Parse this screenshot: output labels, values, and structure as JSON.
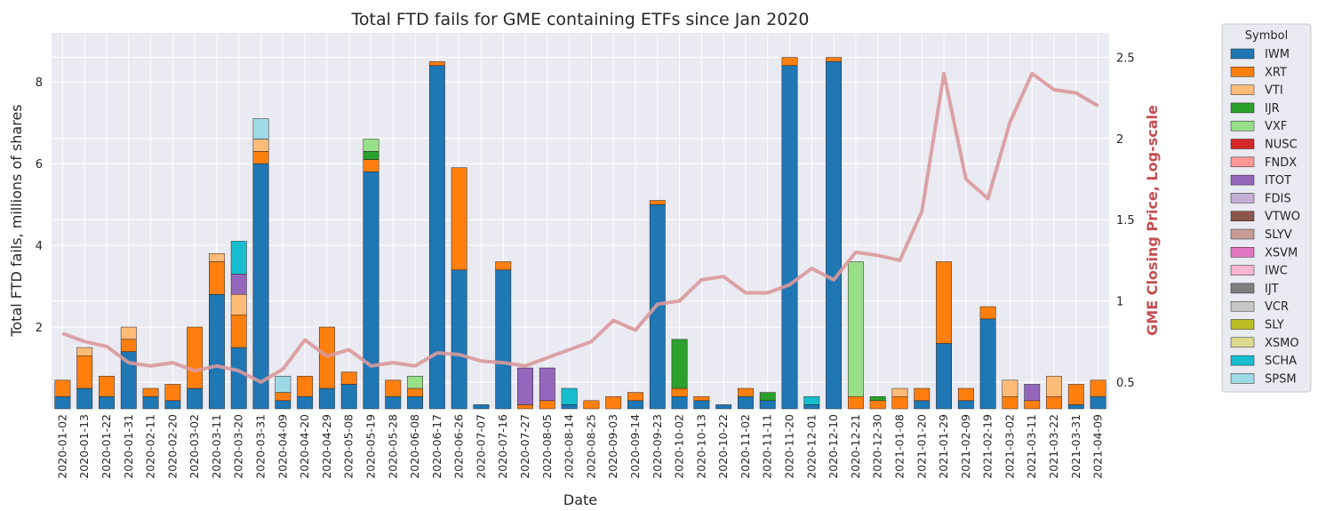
{
  "chart_data": {
    "type": "bar",
    "stacked": true,
    "title": "Total FTD fails for GME containing ETFs since Jan 2020",
    "x_label": "Date",
    "y_label": "Total FTD fails, millions of shares",
    "y2_label": "GME Closing Price, Log-scale",
    "legend_title": "Symbol",
    "legend_position": "outside-right",
    "grid": true,
    "categories": [
      "2020-01-02",
      "2020-01-13",
      "2020-01-22",
      "2020-01-31",
      "2020-02-11",
      "2020-02-20",
      "2020-03-02",
      "2020-03-11",
      "2020-03-20",
      "2020-03-31",
      "2020-04-09",
      "2020-04-20",
      "2020-04-29",
      "2020-05-08",
      "2020-05-19",
      "2020-05-28",
      "2020-06-08",
      "2020-06-17",
      "2020-06-26",
      "2020-07-07",
      "2020-07-16",
      "2020-07-27",
      "2020-08-05",
      "2020-08-14",
      "2020-08-25",
      "2020-09-03",
      "2020-09-14",
      "2020-09-23",
      "2020-10-02",
      "2020-10-13",
      "2020-10-22",
      "2020-11-02",
      "2020-11-11",
      "2020-11-20",
      "2020-12-01",
      "2020-12-10",
      "2020-12-21",
      "2020-12-30",
      "2021-01-08",
      "2021-01-20",
      "2021-01-29",
      "2021-02-09",
      "2021-02-19",
      "2021-03-02",
      "2021-03-11",
      "2021-03-22",
      "2021-03-31",
      "2021-04-09"
    ],
    "ylim": [
      0,
      9.2
    ],
    "yticks": [
      2,
      4,
      6,
      8
    ],
    "y2lim": [
      0.336,
      2.65
    ],
    "y2ticks": [
      0.5,
      1.0,
      1.5,
      2.0,
      2.5
    ],
    "series": [
      {
        "name": "IWM",
        "color": "#1f77b4",
        "values": [
          0.3,
          0.5,
          0.3,
          1.4,
          0.3,
          0.2,
          0.5,
          2.8,
          1.5,
          6.0,
          0.2,
          0.3,
          0.5,
          0.6,
          5.8,
          0.3,
          0.3,
          8.4,
          3.4,
          0.1,
          3.4,
          0,
          0,
          0.1,
          0,
          0,
          0.2,
          5.0,
          0.3,
          0.2,
          0.1,
          0.3,
          0.2,
          8.4,
          0.1,
          8.5,
          0,
          0,
          0,
          0.2,
          1.6,
          0.2,
          2.2,
          0,
          0,
          0,
          0.1,
          0.3
        ]
      },
      {
        "name": "XRT",
        "color": "#ff7f0e",
        "values": [
          0.4,
          0.8,
          0.5,
          0.3,
          0.2,
          0.4,
          1.5,
          0.8,
          0.8,
          0.3,
          0.2,
          0.5,
          1.5,
          0.3,
          0.3,
          0.4,
          0.2,
          0.1,
          2.5,
          0,
          0.2,
          0.1,
          0.2,
          0,
          0.2,
          0.3,
          0.2,
          0.1,
          0.2,
          0.1,
          0,
          0.2,
          0,
          0.2,
          0,
          0.1,
          0.3,
          0.2,
          0.3,
          0.3,
          2.0,
          0.3,
          0.3,
          0.3,
          0.2,
          0.3,
          0.5,
          0.4
        ]
      },
      {
        "name": "VTI",
        "color": "#ffbb78",
        "values": [
          0,
          0.2,
          0,
          0.3,
          0,
          0,
          0,
          0.2,
          0.5,
          0.3,
          0,
          0,
          0,
          0,
          0,
          0,
          0,
          0,
          0,
          0,
          0,
          0,
          0,
          0,
          0,
          0,
          0,
          0,
          0,
          0,
          0,
          0,
          0,
          0,
          0,
          0,
          0,
          0,
          0.2,
          0,
          0,
          0,
          0,
          0.4,
          0,
          0.5,
          0,
          0
        ]
      },
      {
        "name": "IJR",
        "color": "#2ca02c",
        "values": [
          0,
          0,
          0,
          0,
          0,
          0,
          0,
          0,
          0,
          0,
          0,
          0,
          0,
          0,
          0.2,
          0,
          0,
          0,
          0,
          0,
          0,
          0,
          0,
          0,
          0,
          0,
          0,
          0,
          1.2,
          0,
          0,
          0,
          0.2,
          0,
          0,
          0,
          0,
          0.1,
          0,
          0,
          0,
          0,
          0,
          0,
          0,
          0,
          0,
          0
        ]
      },
      {
        "name": "VXF",
        "color": "#98df8a",
        "values": [
          0,
          0,
          0,
          0,
          0,
          0,
          0,
          0,
          0,
          0,
          0,
          0,
          0,
          0,
          0.3,
          0,
          0.3,
          0,
          0,
          0,
          0,
          0,
          0,
          0,
          0,
          0,
          0,
          0,
          0,
          0,
          0,
          0,
          0,
          0,
          0,
          0,
          3.3,
          0,
          0,
          0,
          0,
          0,
          0,
          0,
          0,
          0,
          0,
          0
        ]
      },
      {
        "name": "NUSC",
        "color": "#d62728",
        "values": [
          0,
          0,
          0,
          0,
          0,
          0,
          0,
          0,
          0,
          0,
          0,
          0,
          0,
          0,
          0,
          0,
          0,
          0,
          0,
          0,
          0,
          0,
          0,
          0,
          0,
          0,
          0,
          0,
          0,
          0,
          0,
          0,
          0,
          0,
          0,
          0,
          0,
          0,
          0,
          0,
          0,
          0,
          0,
          0,
          0,
          0,
          0,
          0
        ]
      },
      {
        "name": "FNDX",
        "color": "#ff9896",
        "values": [
          0,
          0,
          0,
          0,
          0,
          0,
          0,
          0,
          0,
          0,
          0,
          0,
          0,
          0,
          0,
          0,
          0,
          0,
          0,
          0,
          0,
          0,
          0,
          0,
          0,
          0,
          0,
          0,
          0,
          0,
          0,
          0,
          0,
          0,
          0,
          0,
          0,
          0,
          0,
          0,
          0,
          0,
          0,
          0,
          0,
          0,
          0,
          0
        ]
      },
      {
        "name": "ITOT",
        "color": "#9467bd",
        "values": [
          0,
          0,
          0,
          0,
          0,
          0,
          0,
          0,
          0.5,
          0,
          0,
          0,
          0,
          0,
          0,
          0,
          0,
          0,
          0,
          0,
          0,
          0.9,
          0.8,
          0,
          0,
          0,
          0,
          0,
          0,
          0,
          0,
          0,
          0,
          0,
          0,
          0,
          0,
          0,
          0,
          0,
          0,
          0,
          0,
          0,
          0.4,
          0,
          0,
          0
        ]
      },
      {
        "name": "FDIS",
        "color": "#c5b0d5",
        "values": [
          0,
          0,
          0,
          0,
          0,
          0,
          0,
          0,
          0,
          0,
          0,
          0,
          0,
          0,
          0,
          0,
          0,
          0,
          0,
          0,
          0,
          0,
          0,
          0,
          0,
          0,
          0,
          0,
          0,
          0,
          0,
          0,
          0,
          0,
          0,
          0,
          0,
          0,
          0,
          0,
          0,
          0,
          0,
          0,
          0,
          0,
          0,
          0
        ]
      },
      {
        "name": "VTWO",
        "color": "#8c564b",
        "values": [
          0,
          0,
          0,
          0,
          0,
          0,
          0,
          0,
          0,
          0,
          0,
          0,
          0,
          0,
          0,
          0,
          0,
          0,
          0,
          0,
          0,
          0,
          0,
          0,
          0,
          0,
          0,
          0,
          0,
          0,
          0,
          0,
          0,
          0,
          0,
          0,
          0,
          0,
          0,
          0,
          0,
          0,
          0,
          0,
          0,
          0,
          0,
          0
        ]
      },
      {
        "name": "SLYV",
        "color": "#c49c94",
        "values": [
          0,
          0,
          0,
          0,
          0,
          0,
          0,
          0,
          0,
          0,
          0,
          0,
          0,
          0,
          0,
          0,
          0,
          0,
          0,
          0,
          0,
          0,
          0,
          0,
          0,
          0,
          0,
          0,
          0,
          0,
          0,
          0,
          0,
          0,
          0,
          0,
          0,
          0,
          0,
          0,
          0,
          0,
          0,
          0,
          0,
          0,
          0,
          0
        ]
      },
      {
        "name": "XSVM",
        "color": "#e377c2",
        "values": [
          0,
          0,
          0,
          0,
          0,
          0,
          0,
          0,
          0,
          0,
          0,
          0,
          0,
          0,
          0,
          0,
          0,
          0,
          0,
          0,
          0,
          0,
          0,
          0,
          0,
          0,
          0,
          0,
          0,
          0,
          0,
          0,
          0,
          0,
          0,
          0,
          0,
          0,
          0,
          0,
          0,
          0,
          0,
          0,
          0,
          0,
          0,
          0
        ]
      },
      {
        "name": "IWC",
        "color": "#f7b6d2",
        "values": [
          0,
          0,
          0,
          0,
          0,
          0,
          0,
          0,
          0,
          0,
          0,
          0,
          0,
          0,
          0,
          0,
          0,
          0,
          0,
          0,
          0,
          0,
          0,
          0,
          0,
          0,
          0,
          0,
          0,
          0,
          0,
          0,
          0,
          0,
          0,
          0,
          0,
          0,
          0,
          0,
          0,
          0,
          0,
          0,
          0,
          0,
          0,
          0
        ]
      },
      {
        "name": "IJT",
        "color": "#7f7f7f",
        "values": [
          0,
          0,
          0,
          0,
          0,
          0,
          0,
          0,
          0,
          0,
          0,
          0,
          0,
          0,
          0,
          0,
          0,
          0,
          0,
          0,
          0,
          0,
          0,
          0,
          0,
          0,
          0,
          0,
          0,
          0,
          0,
          0,
          0,
          0,
          0,
          0,
          0,
          0,
          0,
          0,
          0,
          0,
          0,
          0,
          0,
          0,
          0,
          0
        ]
      },
      {
        "name": "VCR",
        "color": "#c7c7c7",
        "values": [
          0,
          0,
          0,
          0,
          0,
          0,
          0,
          0,
          0,
          0,
          0,
          0,
          0,
          0,
          0,
          0,
          0,
          0,
          0,
          0,
          0,
          0,
          0,
          0,
          0,
          0,
          0,
          0,
          0,
          0,
          0,
          0,
          0,
          0,
          0,
          0,
          0,
          0,
          0,
          0,
          0,
          0,
          0,
          0,
          0,
          0,
          0,
          0
        ]
      },
      {
        "name": "SLY",
        "color": "#bcbd22",
        "values": [
          0,
          0,
          0,
          0,
          0,
          0,
          0,
          0,
          0,
          0,
          0,
          0,
          0,
          0,
          0,
          0,
          0,
          0,
          0,
          0,
          0,
          0,
          0,
          0,
          0,
          0,
          0,
          0,
          0,
          0,
          0,
          0,
          0,
          0,
          0,
          0,
          0,
          0,
          0,
          0,
          0,
          0,
          0,
          0,
          0,
          0,
          0,
          0
        ]
      },
      {
        "name": "XSMO",
        "color": "#dbdb8d",
        "values": [
          0,
          0,
          0,
          0,
          0,
          0,
          0,
          0,
          0,
          0,
          0,
          0,
          0,
          0,
          0,
          0,
          0,
          0,
          0,
          0,
          0,
          0,
          0,
          0,
          0,
          0,
          0,
          0,
          0,
          0,
          0,
          0,
          0,
          0,
          0,
          0,
          0,
          0,
          0,
          0,
          0,
          0,
          0,
          0,
          0,
          0,
          0,
          0
        ]
      },
      {
        "name": "SCHA",
        "color": "#17becf",
        "values": [
          0,
          0,
          0,
          0,
          0,
          0,
          0,
          0,
          0.8,
          0,
          0,
          0,
          0,
          0,
          0,
          0,
          0,
          0,
          0,
          0,
          0,
          0,
          0,
          0.4,
          0,
          0,
          0,
          0,
          0,
          0,
          0,
          0,
          0,
          0,
          0.2,
          0,
          0,
          0,
          0,
          0,
          0,
          0,
          0,
          0,
          0,
          0,
          0,
          0
        ]
      },
      {
        "name": "SPSM",
        "color": "#9edae5",
        "values": [
          0,
          0,
          0,
          0,
          0,
          0,
          0,
          0,
          0,
          0.5,
          0.4,
          0,
          0,
          0,
          0,
          0,
          0,
          0,
          0,
          0,
          0,
          0,
          0,
          0,
          0,
          0,
          0,
          0,
          0,
          0,
          0,
          0,
          0,
          0,
          0,
          0,
          0,
          0,
          0,
          0,
          0,
          0,
          0,
          0,
          0,
          0,
          0,
          0
        ]
      }
    ],
    "line_series": {
      "axis": "y2",
      "color": "#d9999c",
      "values": [
        0.8,
        0.75,
        0.72,
        0.62,
        0.6,
        0.62,
        0.57,
        0.6,
        0.57,
        0.5,
        0.58,
        0.76,
        0.66,
        0.7,
        0.6,
        0.62,
        0.6,
        0.68,
        0.67,
        0.63,
        0.62,
        0.6,
        0.65,
        0.7,
        0.75,
        0.88,
        0.82,
        0.98,
        1.0,
        1.13,
        1.15,
        1.05,
        1.05,
        1.1,
        1.2,
        1.13,
        1.3,
        1.28,
        1.25,
        1.55,
        2.4,
        1.75,
        1.63,
        2.1,
        2.4,
        2.3,
        2.28,
        2.2
      ]
    }
  }
}
